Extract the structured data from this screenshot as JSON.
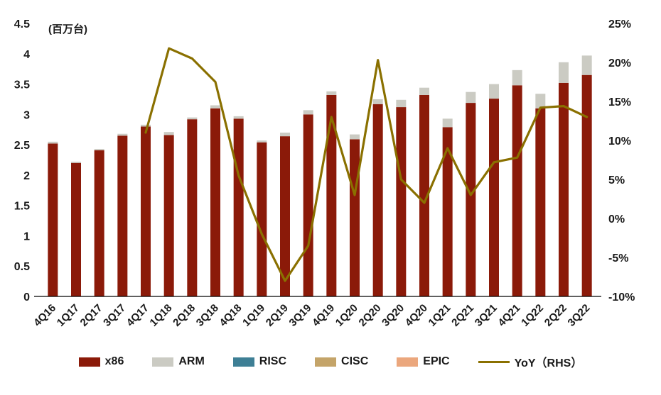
{
  "chart_data": {
    "type": "bar",
    "subtype": "stacked-bar-with-line",
    "unit_label": "(百万台)",
    "categories": [
      "4Q16",
      "1Q17",
      "2Q17",
      "3Q17",
      "4Q17",
      "1Q18",
      "2Q18",
      "3Q18",
      "4Q18",
      "1Q19",
      "2Q19",
      "3Q19",
      "4Q19",
      "1Q20",
      "2Q20",
      "3Q20",
      "4Q20",
      "1Q21",
      "2Q21",
      "3Q21",
      "4Q21",
      "1Q22",
      "2Q22",
      "3Q22"
    ],
    "series": [
      {
        "name": "x86",
        "type": "bar",
        "axis": "left",
        "color": "#8B1A09",
        "values": [
          2.52,
          2.2,
          2.41,
          2.65,
          2.8,
          2.66,
          2.92,
          3.1,
          2.93,
          2.54,
          2.64,
          3.0,
          3.32,
          2.59,
          3.17,
          3.12,
          3.32,
          2.79,
          3.19,
          3.26,
          3.48,
          3.1,
          3.52,
          3.65
        ]
      },
      {
        "name": "ARM",
        "type": "bar",
        "axis": "left",
        "color": "#CBCBC3",
        "values": [
          0.03,
          0.02,
          0.02,
          0.03,
          0.03,
          0.05,
          0.03,
          0.05,
          0.04,
          0.03,
          0.06,
          0.07,
          0.06,
          0.08,
          0.08,
          0.12,
          0.12,
          0.14,
          0.18,
          0.24,
          0.25,
          0.24,
          0.34,
          0.32
        ]
      },
      {
        "name": "RISC",
        "type": "bar",
        "axis": "left",
        "color": "#3E7F95",
        "values": [
          0,
          0,
          0,
          0,
          0,
          0,
          0,
          0,
          0,
          0,
          0,
          0,
          0,
          0,
          0,
          0,
          0,
          0,
          0,
          0,
          0,
          0,
          0,
          0
        ]
      },
      {
        "name": "CISC",
        "type": "bar",
        "axis": "left",
        "color": "#C4A469",
        "values": [
          0,
          0,
          0,
          0,
          0,
          0,
          0,
          0,
          0,
          0,
          0,
          0,
          0,
          0,
          0,
          0,
          0,
          0,
          0,
          0,
          0,
          0,
          0,
          0
        ]
      },
      {
        "name": "EPIC",
        "type": "bar",
        "axis": "left",
        "color": "#EBA77D",
        "values": [
          0,
          0,
          0,
          0,
          0,
          0,
          0,
          0,
          0,
          0,
          0,
          0,
          0,
          0,
          0,
          0,
          0,
          0,
          0,
          0,
          0,
          0,
          0,
          0
        ]
      },
      {
        "name": "YoY（RHS）",
        "type": "line",
        "axis": "right",
        "color": "#8A7000",
        "values": [
          null,
          null,
          null,
          null,
          11,
          21.8,
          20.5,
          17.5,
          5.5,
          -2,
          -8,
          -3.5,
          13,
          3,
          20.3,
          5,
          2,
          9,
          3,
          7.2,
          7.8,
          14.2,
          14.4,
          13
        ]
      }
    ],
    "left_axis": {
      "min": 0,
      "max": 4.5,
      "ticks": [
        "4.5",
        "4",
        "3.5",
        "3",
        "2.5",
        "2",
        "1.5",
        "1",
        "0.5",
        "0"
      ]
    },
    "right_axis": {
      "min": -10,
      "max": 25,
      "ticks": [
        "25%",
        "20%",
        "15%",
        "10%",
        "5%",
        "0%",
        "-5%",
        "-10%"
      ]
    },
    "legend": [
      "x86",
      "ARM",
      "RISC",
      "CISC",
      "EPIC",
      "YoY（RHS）"
    ],
    "grid": "off",
    "legend_position": "bottom"
  }
}
